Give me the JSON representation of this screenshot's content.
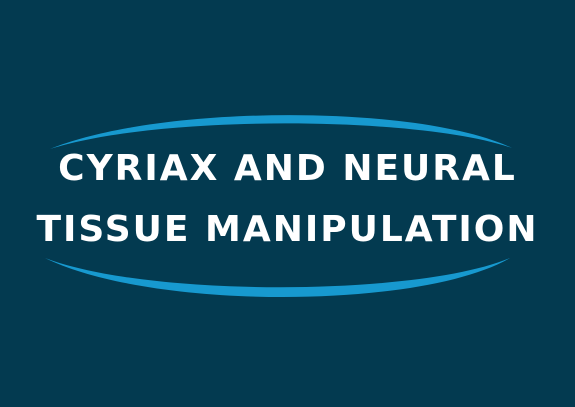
{
  "title": {
    "line1": "CYRIAX AND NEURAL",
    "line2": "TISSUE MANIPULATION"
  },
  "colors": {
    "background": "#033a50",
    "accent": "#1799cf",
    "text": "#ffffff"
  }
}
